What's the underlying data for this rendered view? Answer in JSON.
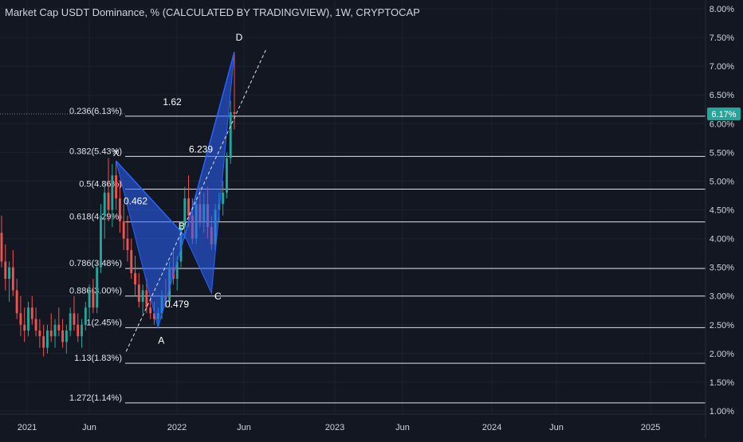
{
  "title": "Market Cap USDT Dominance, % (CALCULATED BY TRADINGVIEW), 1W, CRYPTOCAP",
  "colors": {
    "background": "#131722",
    "grid": "#1e222d",
    "text": "#d1d4dc",
    "up": "#26a69a",
    "down": "#ef5350",
    "pattern": "#2962ff",
    "price_badge": "#26a69a"
  },
  "chart_data": {
    "type": "candlestick",
    "title": "Market Cap USDT Dominance, % (CALCULATED BY TRADINGVIEW), 1W, CRYPTOCAP",
    "y_unit": "%",
    "ylim": [
      1.0,
      8.0
    ],
    "y_ticks": [
      "8.00%",
      "7.50%",
      "7.00%",
      "6.50%",
      "6.00%",
      "5.50%",
      "5.00%",
      "4.50%",
      "4.00%",
      "3.50%",
      "3.00%",
      "2.50%",
      "2.00%",
      "1.50%",
      "1.00%"
    ],
    "x_ticks": [
      "2021",
      "Jun",
      "2022",
      "Jun",
      "2023",
      "Jun",
      "2024",
      "Jun",
      "2025"
    ],
    "grid": true,
    "current_price": "6.17%",
    "fib_levels": [
      {
        "label": "0.236(6.13%)",
        "value": 6.13
      },
      {
        "label": "0.382(5.43%)",
        "value": 5.43
      },
      {
        "label": "0.5(4.86%)",
        "value": 4.86
      },
      {
        "label": "0.618(4.29%)",
        "value": 4.29
      },
      {
        "label": "0.786(3.48%)",
        "value": 3.48
      },
      {
        "label": "0.886(3.00%)",
        "value": 3.0
      },
      {
        "label": "1(2.45%)",
        "value": 2.45
      },
      {
        "label": "1.13(1.83%)",
        "value": 1.83
      },
      {
        "label": "1.272(1.14%)",
        "value": 1.14
      }
    ],
    "pattern_points": [
      {
        "label": "X",
        "value": 5.35
      },
      {
        "label": "A",
        "value": 2.45
      },
      {
        "label": "B",
        "value": 4.05
      },
      {
        "label": "C",
        "value": 3.05
      },
      {
        "label": "D",
        "value": 7.25
      }
    ],
    "ratios": [
      "0.462",
      "0.479",
      "1.62",
      "6.239"
    ],
    "candles": [
      [
        4.1,
        4.4,
        3.5,
        3.6
      ],
      [
        3.6,
        3.9,
        3.1,
        3.3
      ],
      [
        3.3,
        3.6,
        2.9,
        3.5
      ],
      [
        3.5,
        3.8,
        3.0,
        3.1
      ],
      [
        3.1,
        3.3,
        2.6,
        2.7
      ],
      [
        2.7,
        3.0,
        2.3,
        2.5
      ],
      [
        2.5,
        2.8,
        2.2,
        2.4
      ],
      [
        2.4,
        2.9,
        2.3,
        2.8
      ],
      [
        2.8,
        3.0,
        2.5,
        2.6
      ],
      [
        2.6,
        2.8,
        2.3,
        2.4
      ],
      [
        2.4,
        2.6,
        2.1,
        2.3
      ],
      [
        2.3,
        2.5,
        1.95,
        2.1
      ],
      [
        2.1,
        2.5,
        2.0,
        2.4
      ],
      [
        2.4,
        2.7,
        2.2,
        2.3
      ],
      [
        2.3,
        2.6,
        2.1,
        2.5
      ],
      [
        2.5,
        2.8,
        2.3,
        2.4
      ],
      [
        2.4,
        2.6,
        2.1,
        2.2
      ],
      [
        2.2,
        2.5,
        2.0,
        2.4
      ],
      [
        2.4,
        2.8,
        2.3,
        2.7
      ],
      [
        2.7,
        3.0,
        2.4,
        2.5
      ],
      [
        2.5,
        2.7,
        2.2,
        2.3
      ],
      [
        2.3,
        2.6,
        2.1,
        2.5
      ],
      [
        2.5,
        2.9,
        2.4,
        2.8
      ],
      [
        2.8,
        3.2,
        2.6,
        3.1
      ],
      [
        3.1,
        3.3,
        2.7,
        2.8
      ],
      [
        2.8,
        3.6,
        2.7,
        3.5
      ],
      [
        3.5,
        4.6,
        3.4,
        4.4
      ],
      [
        4.4,
        5.0,
        4.0,
        4.8
      ],
      [
        4.8,
        5.4,
        4.3,
        4.5
      ],
      [
        4.5,
        5.3,
        4.2,
        5.1
      ],
      [
        5.1,
        5.35,
        4.5,
        4.7
      ],
      [
        4.7,
        5.0,
        4.1,
        4.3
      ],
      [
        4.3,
        4.6,
        3.8,
        4.0
      ],
      [
        4.0,
        4.4,
        3.6,
        3.8
      ],
      [
        3.8,
        4.0,
        3.3,
        3.4
      ],
      [
        3.4,
        3.7,
        3.0,
        3.2
      ],
      [
        3.2,
        3.4,
        2.8,
        2.9
      ],
      [
        2.9,
        3.2,
        2.7,
        3.1
      ],
      [
        3.1,
        3.3,
        2.7,
        2.8
      ],
      [
        2.8,
        3.0,
        2.6,
        2.7
      ],
      [
        2.7,
        2.9,
        2.5,
        2.6
      ],
      [
        2.6,
        2.8,
        2.45,
        2.7
      ],
      [
        2.7,
        3.1,
        2.6,
        3.0
      ],
      [
        3.0,
        3.3,
        2.8,
        2.9
      ],
      [
        2.9,
        3.6,
        2.8,
        3.5
      ],
      [
        3.5,
        3.8,
        3.2,
        3.3
      ],
      [
        3.3,
        3.7,
        3.1,
        3.6
      ],
      [
        3.6,
        4.3,
        3.5,
        4.2
      ],
      [
        4.2,
        4.9,
        4.0,
        4.7
      ],
      [
        4.7,
        5.1,
        4.2,
        4.4
      ],
      [
        4.4,
        4.7,
        3.9,
        4.0
      ],
      [
        4.0,
        4.8,
        3.9,
        4.6
      ],
      [
        4.6,
        4.9,
        4.2,
        4.3
      ],
      [
        4.3,
        4.8,
        4.1,
        4.6
      ],
      [
        4.6,
        4.9,
        4.0,
        4.2
      ],
      [
        4.2,
        4.4,
        3.8,
        3.9
      ],
      [
        3.9,
        4.6,
        3.8,
        4.5
      ],
      [
        4.5,
        4.8,
        4.3,
        4.6
      ],
      [
        4.6,
        5.0,
        4.4,
        4.8
      ],
      [
        4.8,
        5.5,
        4.7,
        5.4
      ],
      [
        5.4,
        6.4,
        5.3,
        6.2
      ],
      [
        6.2,
        7.25,
        5.9,
        6.17
      ]
    ]
  }
}
